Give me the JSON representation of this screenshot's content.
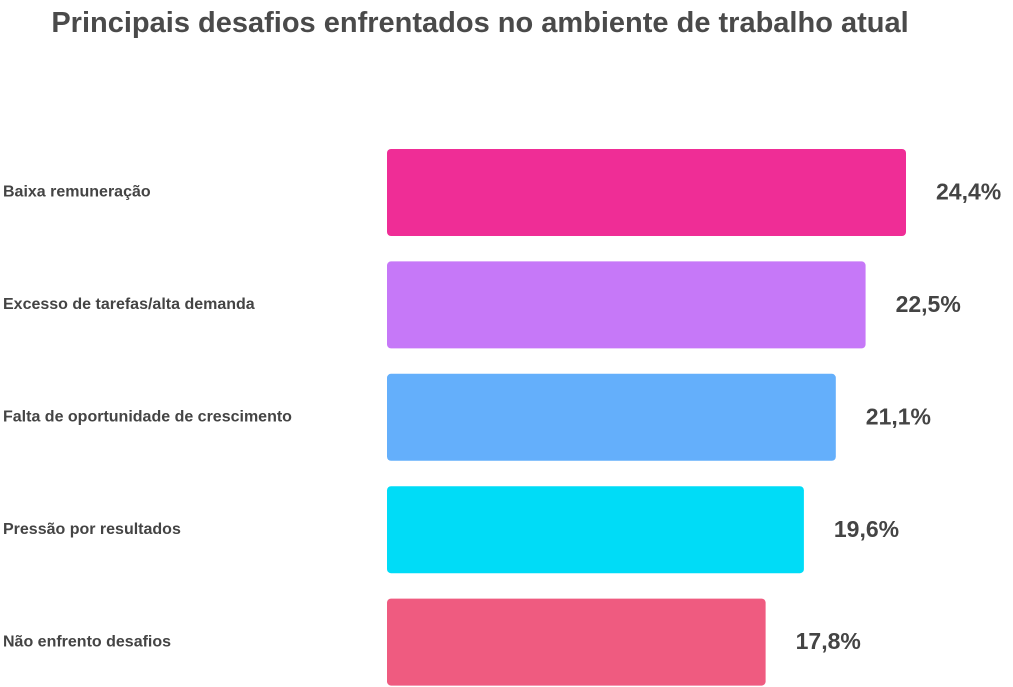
{
  "chart_data": {
    "type": "bar",
    "orientation": "horizontal",
    "title": "Principais desafios enfrentados no ambiente de trabalho atual",
    "categories": [
      "Baixa remuneração",
      "Excesso de tarefas/alta demanda",
      "Falta de oportunidade de crescimento",
      "Pressão por resultados",
      "Não enfrento desafios"
    ],
    "values": [
      24.4,
      22.5,
      21.1,
      19.6,
      17.8
    ],
    "value_labels": [
      "24,4%",
      "22,5%",
      "21,1%",
      "19,6%",
      "17,8%"
    ],
    "colors": [
      "#ef2d96",
      "#c678f8",
      "#64affb",
      "#00dcf7",
      "#ef5b80"
    ],
    "xlim": [
      0,
      24.4
    ],
    "grid": false,
    "legend": "none"
  }
}
